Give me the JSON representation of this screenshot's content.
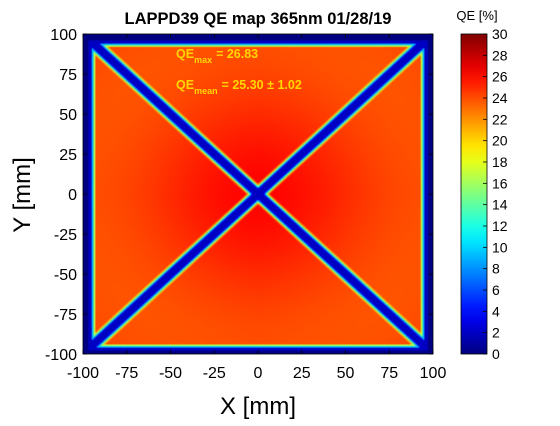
{
  "chart_data": {
    "type": "heatmap",
    "title": "LAPPD39 QE map 365nm 01/28/19",
    "xlabel": "X [mm]",
    "ylabel": "Y [mm]",
    "xlim": [
      -100,
      100
    ],
    "ylim": [
      -100,
      100
    ],
    "xticks": [
      -100,
      -75,
      -50,
      -25,
      0,
      25,
      50,
      75,
      100
    ],
    "yticks": [
      -100,
      -75,
      -50,
      -25,
      0,
      25,
      50,
      75,
      100
    ],
    "colorbar": {
      "label": "QE [%]",
      "range": [
        0,
        30
      ],
      "ticks": [
        0,
        2,
        4,
        6,
        8,
        10,
        12,
        14,
        16,
        18,
        20,
        22,
        24,
        26,
        28,
        30
      ],
      "colormap": "jet"
    },
    "annotations": {
      "qe_max_label": "QE",
      "qe_max_sub": "max",
      "qe_max_value": "= 26.83",
      "qe_mean_label": "QE",
      "qe_mean_sub": "mean",
      "qe_mean_value": "= 25.30 ± 1.02",
      "color": "#ffd700"
    },
    "qe_max": 26.83,
    "qe_mean": 25.3,
    "qe_std": 1.02,
    "field": {
      "plateau_qe": 25.3,
      "edge_qe": 0,
      "spacer_qe": 2,
      "spacers": "two diagonal cross spacers from corner to corner"
    }
  }
}
